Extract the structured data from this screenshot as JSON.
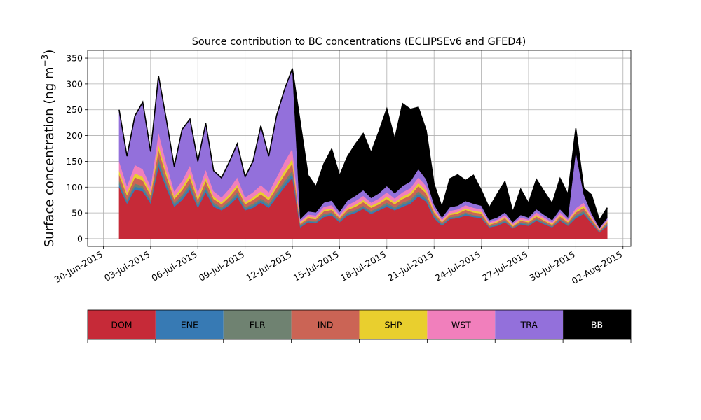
{
  "chart_data": {
    "type": "area",
    "stacked": true,
    "title": "Source contribution to BC concentrations (ECLIPSEv6 and GFED4)",
    "ylabel": "Surface concentration (ng m",
    "ylabel_exponent": "−3",
    "ylabel_close": ")",
    "xlabel": "",
    "ylim": [
      -15,
      365
    ],
    "xlim": [
      "2015-06-29",
      "2015-08-02T12:00"
    ],
    "grid": true,
    "yticks": [
      0,
      50,
      100,
      150,
      200,
      250,
      300,
      350
    ],
    "xticks": [
      "30-Jun-2015",
      "03-Jul-2015",
      "06-Jul-2015",
      "09-Jul-2015",
      "12-Jul-2015",
      "15-Jul-2015",
      "18-Jul-2015",
      "21-Jul-2015",
      "24-Jul-2015",
      "27-Jul-2015",
      "30-Jul-2015",
      "02-Aug-2015"
    ],
    "legend_position": "bottom",
    "legend": [
      {
        "label": "DOM",
        "color": "#c62a38",
        "text_color": "#000000"
      },
      {
        "label": "ENE",
        "color": "#377ab4",
        "text_color": "#000000"
      },
      {
        "label": "FLR",
        "color": "#6f8271",
        "text_color": "#000000"
      },
      {
        "label": "IND",
        "color": "#cb6455",
        "text_color": "#000000"
      },
      {
        "label": "SHP",
        "color": "#e9cf2e",
        "text_color": "#000000"
      },
      {
        "label": "WST",
        "color": "#f17fbc",
        "text_color": "#000000"
      },
      {
        "label": "TRA",
        "color": "#9370db",
        "text_color": "#000000"
      },
      {
        "label": "BB",
        "color": "#000000",
        "text_color": "#ffffff"
      }
    ],
    "x": [
      "2015-07-01",
      "2015-07-01T12:00",
      "2015-07-02",
      "2015-07-02T12:00",
      "2015-07-03",
      "2015-07-03T12:00",
      "2015-07-04",
      "2015-07-04T12:00",
      "2015-07-05",
      "2015-07-05T12:00",
      "2015-07-06",
      "2015-07-06T12:00",
      "2015-07-07",
      "2015-07-07T12:00",
      "2015-07-08",
      "2015-07-08T12:00",
      "2015-07-09",
      "2015-07-09T12:00",
      "2015-07-10",
      "2015-07-10T12:00",
      "2015-07-11",
      "2015-07-11T12:00",
      "2015-07-12",
      "2015-07-12T12:00",
      "2015-07-13",
      "2015-07-13T12:00",
      "2015-07-14",
      "2015-07-14T12:00",
      "2015-07-15",
      "2015-07-15T12:00",
      "2015-07-16",
      "2015-07-16T12:00",
      "2015-07-17",
      "2015-07-17T12:00",
      "2015-07-18",
      "2015-07-18T12:00",
      "2015-07-19",
      "2015-07-19T12:00",
      "2015-07-20",
      "2015-07-20T12:00",
      "2015-07-21",
      "2015-07-21T12:00",
      "2015-07-22",
      "2015-07-22T12:00",
      "2015-07-23",
      "2015-07-23T12:00",
      "2015-07-24",
      "2015-07-24T12:00",
      "2015-07-25",
      "2015-07-25T12:00",
      "2015-07-26",
      "2015-07-26T12:00",
      "2015-07-27",
      "2015-07-27T12:00",
      "2015-07-28",
      "2015-07-28T12:00",
      "2015-07-29",
      "2015-07-29T12:00",
      "2015-07-30",
      "2015-07-30T12:00",
      "2015-07-31",
      "2015-07-31T12:00",
      "2015-08-01"
    ],
    "series": [
      {
        "name": "DOM",
        "values": [
          100,
          68,
          95,
          92,
          68,
          140,
          98,
          62,
          75,
          95,
          60,
          90,
          62,
          55,
          65,
          80,
          55,
          60,
          70,
          60,
          80,
          100,
          118,
          22,
          32,
          30,
          42,
          45,
          32,
          45,
          50,
          58,
          48,
          55,
          62,
          55,
          62,
          68,
          82,
          72,
          40,
          25,
          38,
          40,
          45,
          42,
          40,
          22,
          25,
          32,
          20,
          28,
          25,
          35,
          28,
          22,
          35,
          25,
          40,
          48,
          30,
          12,
          25
        ]
      },
      {
        "name": "ENE",
        "values": [
          6,
          4,
          6,
          5,
          4,
          8,
          6,
          4,
          5,
          6,
          4,
          6,
          4,
          3,
          4,
          5,
          3,
          4,
          4,
          4,
          5,
          6,
          7,
          2,
          2,
          2,
          3,
          3,
          2,
          3,
          3,
          3,
          3,
          3,
          4,
          3,
          4,
          4,
          5,
          4,
          3,
          2,
          2,
          2,
          3,
          2,
          2,
          1,
          2,
          2,
          1,
          2,
          2,
          2,
          2,
          1,
          2,
          2,
          3,
          3,
          2,
          1,
          2
        ]
      },
      {
        "name": "FLR",
        "values": [
          6,
          4,
          6,
          5,
          4,
          8,
          6,
          4,
          5,
          6,
          4,
          6,
          4,
          3,
          4,
          5,
          3,
          4,
          4,
          4,
          5,
          6,
          7,
          2,
          2,
          2,
          3,
          3,
          2,
          3,
          3,
          3,
          3,
          3,
          4,
          3,
          4,
          4,
          5,
          4,
          3,
          2,
          2,
          2,
          3,
          2,
          2,
          1,
          2,
          2,
          1,
          2,
          2,
          2,
          2,
          1,
          2,
          2,
          3,
          3,
          2,
          1,
          2
        ]
      },
      {
        "name": "IND",
        "values": [
          12,
          8,
          12,
          11,
          8,
          16,
          12,
          7,
          9,
          11,
          7,
          10,
          7,
          6,
          8,
          9,
          6,
          7,
          8,
          7,
          9,
          12,
          14,
          3,
          4,
          4,
          5,
          5,
          4,
          5,
          6,
          7,
          6,
          6,
          7,
          6,
          7,
          8,
          10,
          8,
          5,
          3,
          4,
          5,
          5,
          5,
          5,
          3,
          3,
          4,
          2,
          3,
          3,
          4,
          3,
          3,
          4,
          3,
          5,
          6,
          4,
          2,
          3
        ]
      },
      {
        "name": "SHP",
        "values": [
          8,
          6,
          8,
          7,
          6,
          10,
          8,
          5,
          6,
          8,
          5,
          7,
          5,
          4,
          5,
          6,
          4,
          5,
          6,
          5,
          6,
          8,
          9,
          2,
          3,
          3,
          3,
          3,
          2,
          3,
          4,
          4,
          4,
          4,
          5,
          4,
          5,
          5,
          6,
          5,
          3,
          2,
          3,
          3,
          3,
          3,
          3,
          2,
          2,
          2,
          2,
          2,
          2,
          3,
          2,
          2,
          3,
          2,
          3,
          4,
          2,
          1,
          2
        ]
      },
      {
        "name": "WST",
        "values": [
          18,
          12,
          16,
          15,
          11,
          24,
          16,
          10,
          12,
          16,
          10,
          15,
          10,
          9,
          11,
          14,
          9,
          10,
          12,
          10,
          14,
          17,
          20,
          3,
          4,
          4,
          6,
          6,
          4,
          6,
          7,
          8,
          6,
          7,
          8,
          7,
          8,
          9,
          11,
          9,
          5,
          3,
          5,
          5,
          6,
          6,
          5,
          3,
          3,
          4,
          3,
          4,
          3,
          5,
          4,
          3,
          5,
          3,
          5,
          6,
          4,
          2,
          3
        ]
      },
      {
        "name": "TRA",
        "values": [
          100,
          58,
          95,
          130,
          68,
          110,
          85,
          48,
          100,
          90,
          60,
          90,
          40,
          38,
          52,
          65,
          40,
          60,
          115,
          70,
          120,
          140,
          155,
          4,
          6,
          6,
          8,
          9,
          6,
          9,
          10,
          11,
          9,
          10,
          12,
          10,
          12,
          13,
          16,
          13,
          7,
          4,
          7,
          7,
          8,
          8,
          7,
          4,
          4,
          5,
          3,
          5,
          4,
          6,
          5,
          4,
          6,
          4,
          110,
          16,
          5,
          2,
          3
        ]
      },
      {
        "name": "BB",
        "values": [
          0,
          0,
          0,
          0,
          0,
          0,
          0,
          0,
          0,
          0,
          0,
          0,
          0,
          0,
          0,
          0,
          0,
          0,
          0,
          0,
          0,
          0,
          0,
          188,
          70,
          50,
          75,
          100,
          70,
          85,
          100,
          110,
          88,
          120,
          150,
          105,
          160,
          140,
          120,
          95,
          40,
          20,
          55,
          60,
          40,
          55,
          30,
          24,
          45,
          60,
          20,
          50,
          28,
          58,
          45,
          32,
          60,
          45,
          45,
          12,
          36,
          15,
          20
        ]
      }
    ]
  }
}
